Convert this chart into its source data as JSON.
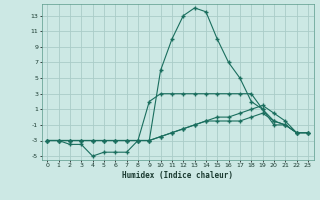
{
  "xlabel": "Humidex (Indice chaleur)",
  "bg_color": "#cce8e4",
  "grid_color": "#aaccc8",
  "line_color": "#1a6e5e",
  "xlim": [
    -0.5,
    23.5
  ],
  "ylim": [
    -5.5,
    14.5
  ],
  "xticks": [
    0,
    1,
    2,
    3,
    4,
    5,
    6,
    7,
    8,
    9,
    10,
    11,
    12,
    13,
    14,
    15,
    16,
    17,
    18,
    19,
    20,
    21,
    22,
    23
  ],
  "yticks": [
    -5,
    -3,
    -1,
    1,
    3,
    5,
    7,
    9,
    11,
    13
  ],
  "series": [
    {
      "x": [
        0,
        1,
        2,
        3,
        4,
        5,
        6,
        7,
        8,
        9,
        10,
        11,
        12,
        13,
        14,
        15,
        16,
        17,
        18,
        19,
        20,
        21,
        22,
        23
      ],
      "y": [
        -3,
        -3,
        -3.5,
        -3.5,
        -5,
        -4.5,
        -4.5,
        -4.5,
        -3,
        -3,
        6,
        10,
        13,
        14,
        13.5,
        10,
        7,
        5,
        2,
        1,
        -1,
        -1,
        -2,
        -2
      ]
    },
    {
      "x": [
        0,
        1,
        2,
        3,
        4,
        5,
        6,
        7,
        8,
        9,
        10,
        11,
        12,
        13,
        14,
        15,
        16,
        17,
        18,
        19,
        20,
        21,
        22,
        23
      ],
      "y": [
        -3,
        -3,
        -3,
        -3,
        -3,
        -3,
        -3,
        -3,
        -3,
        2,
        3,
        3,
        3,
        3,
        3,
        3,
        3,
        3,
        3,
        1,
        -0.5,
        -1,
        -2,
        -2
      ]
    },
    {
      "x": [
        0,
        1,
        2,
        3,
        4,
        5,
        6,
        7,
        8,
        9,
        10,
        11,
        12,
        13,
        14,
        15,
        16,
        17,
        18,
        19,
        20,
        21,
        22,
        23
      ],
      "y": [
        -3,
        -3,
        -3,
        -3,
        -3,
        -3,
        -3,
        -3,
        -3,
        -3,
        -2.5,
        -2,
        -1.5,
        -1,
        -0.5,
        -0.5,
        -0.5,
        -0.5,
        0,
        0.5,
        -0.5,
        -1,
        -2,
        -2
      ]
    },
    {
      "x": [
        0,
        1,
        2,
        3,
        4,
        5,
        6,
        7,
        8,
        9,
        10,
        11,
        12,
        13,
        14,
        15,
        16,
        17,
        18,
        19,
        20,
        21,
        22,
        23
      ],
      "y": [
        -3,
        -3,
        -3,
        -3,
        -3,
        -3,
        -3,
        -3,
        -3,
        -3,
        -2.5,
        -2,
        -1.5,
        -1,
        -0.5,
        0,
        0,
        0.5,
        1,
        1.5,
        0.5,
        -0.5,
        -2,
        -2
      ]
    }
  ]
}
